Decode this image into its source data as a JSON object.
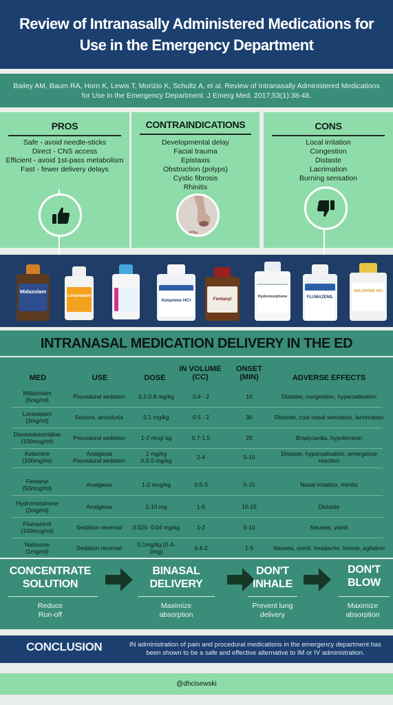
{
  "title": "Review of Intranasally Administered Medications for Use in the Emergency Department",
  "citation": "Bailey AM, Baum RA, Horn K, Lewis T, Morizio K, Schultz A, et al. Review of Intranasally Administered Medications for Use in the Emergency Department. J Emerg Med. 2017;53(1):38-48.",
  "pros": {
    "heading": "PROS",
    "items": [
      "Safe - avoid needle-sticks",
      "Direct - CNS access",
      "Efficient - avoid 1st-pass metabolism",
      "Fast - fewer delivery delays"
    ],
    "icon": "thumbs-up-icon"
  },
  "contraindications": {
    "heading": "CONTRAINDICATIONS",
    "items": [
      "Developmental delay",
      "Facial trauma",
      "Epistaxis",
      "Obstruction (polyps)",
      "Cystic fibrosis",
      "Rhinitis"
    ],
    "icon": "nose-photo"
  },
  "cons": {
    "heading": "CONS",
    "items": [
      "Local irritation",
      "Congestion",
      "Distaste",
      "Lacrimation",
      "Burning sensation"
    ],
    "icon": "thumbs-down-icon"
  },
  "vial_labels": [
    "Midazolam",
    "Lorazepam",
    "",
    "Ketamine HCl",
    "Fentanyl",
    "Hydromorphone",
    "FLUMAZENIL",
    "NALOXONE HCl"
  ],
  "table": {
    "title": "INTRANASAL MEDICATION DELIVERY IN THE ED",
    "headers": {
      "med": "MED",
      "use": "USE",
      "dose": "DOSE",
      "volume": "IN VOLUME (CC)",
      "onset": "ONSET (MIN)",
      "adverse": "ADVERSE EFFECTS"
    },
    "rows": [
      {
        "med": "Midazolam\n(5mg/ml)",
        "use": "Procedural sedation",
        "dose": "0.2-0.8 mg/kg",
        "volume": "0.4 - 2",
        "onset": "10",
        "adverse": "Distaste, congestion, hypersalivation"
      },
      {
        "med": "Lorazepam\n(2mg/ml)",
        "use": "Seizure, anxiolysis",
        "dose": "0.1 mg/kg",
        "volume": "0.5 - 2",
        "onset": "30",
        "adverse": "Distaste, cool nasal sensation, lacrimation"
      },
      {
        "med": "Dexmedetomidine\n(100mcg/ml)",
        "use": "Procedural sedation",
        "dose": "1-2 mcg/ kg",
        "volume": "0.7-1.5",
        "onset": "20",
        "adverse": "Bradycardia, hypotension"
      },
      {
        "med": "Ketamine\n(100mg/ml)",
        "use": "Analgesia\nProcedural sedation",
        "dose": "1 mg/kg\n0.5-5 mg/kg",
        "volume": "2-4",
        "onset": "5-10",
        "adverse": "Distaste, hypersalivation, emergence reaction"
      },
      {
        "med": "Fentanyl\n(50mcg/ml)",
        "use": "Analgesia",
        "dose": "1-2 mcg/kg",
        "volume": "0.5-3",
        "onset": "5-15",
        "adverse": "Nasal irritation, rhinitis"
      },
      {
        "med": "Hydromorphone\n(2mg/ml)",
        "use": "Analgesia",
        "dose": "2-10 mg",
        "volume": "1-5",
        "onset": "10-15",
        "adverse": "Distaste"
      },
      {
        "med": "Flumazenil\n(100mcg/ml)",
        "use": "Sedation reversal",
        "dose": "0.025- 0.04 mg/kg",
        "volume": "1-2",
        "onset": "5-10",
        "adverse": "Nausea, vomit"
      },
      {
        "med": "Naloxone\n(1mg/ml)",
        "use": "Sedation reversal",
        "dose": "0.1mg/kg (0.4-2mg)",
        "volume": "0.4-2",
        "onset": "1-5",
        "adverse": "Nausea, vomit, headache, tremor, agitation"
      }
    ]
  },
  "steps": [
    {
      "heading": "CONCENTRATE\nSOLUTION",
      "sub": "Reduce\nRun-off"
    },
    {
      "heading": "BINASAL\nDELIVERY",
      "sub": "Maximize\nabsorption"
    },
    {
      "heading": "DON'T\nINHALE",
      "sub": "Prevent lung\ndelivery"
    },
    {
      "heading": "DON'T\nBLOW",
      "sub": "Maximize\nabsorption"
    }
  ],
  "conclusion": {
    "heading": "CONCLUSION",
    "text": "IN administration of pain and procedural medications in the emergency department has been shown to be a safe and effective alternative to IM or IV administration."
  },
  "handle": "@dhcisewski",
  "colors": {
    "navy": "#1b3f6e",
    "teal": "#3a8d79",
    "mint": "#8fdcab",
    "page": "#e8eee9"
  }
}
